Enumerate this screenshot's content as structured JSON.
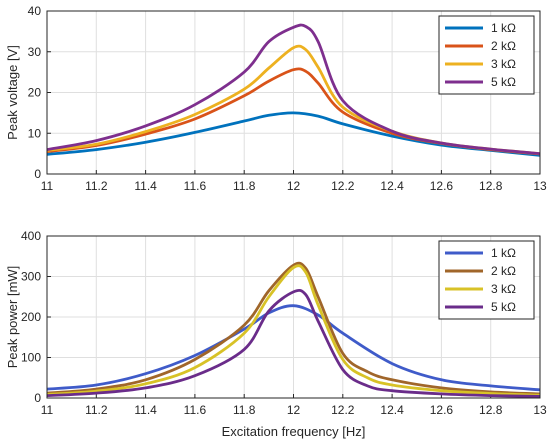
{
  "chart_data": [
    {
      "type": "line",
      "xlabel": "",
      "ylabel": "Peak voltage [V]",
      "xlim": [
        11,
        13
      ],
      "ylim": [
        0,
        40
      ],
      "xticks": [
        "11",
        "11.2",
        "11.4",
        "11.6",
        "11.8",
        "12",
        "12.2",
        "12.4",
        "12.6",
        "12.8",
        "13"
      ],
      "yticks": [
        "0",
        "10",
        "20",
        "30",
        "40"
      ],
      "grid": true,
      "legend_position": "top-right",
      "series": [
        {
          "name": "1 kΩ",
          "color": "#0072BD",
          "x": [
            11,
            11.2,
            11.4,
            11.6,
            11.8,
            11.9,
            12,
            12.1,
            12.2,
            12.4,
            12.6,
            12.8,
            13
          ],
          "y": [
            4.8,
            6,
            7.8,
            10.2,
            13,
            14.4,
            15,
            14.2,
            12.3,
            9.3,
            7.1,
            5.8,
            4.6
          ]
        },
        {
          "name": "2 kΩ",
          "color": "#D95319",
          "x": [
            11,
            11.2,
            11.4,
            11.6,
            11.8,
            11.9,
            12,
            12.05,
            12.1,
            12.2,
            12.4,
            12.6,
            12.8,
            13
          ],
          "y": [
            5.5,
            7,
            9.8,
            13.5,
            19.2,
            22.8,
            25.6,
            25.2,
            22.3,
            15.2,
            10,
            7.5,
            6,
            4.9
          ]
        },
        {
          "name": "3 kΩ",
          "color": "#EDB120",
          "x": [
            11,
            11.2,
            11.4,
            11.6,
            11.8,
            11.9,
            12,
            12.05,
            12.1,
            12.2,
            12.4,
            12.6,
            12.8,
            13
          ],
          "y": [
            5.8,
            7.3,
            10.4,
            14.6,
            20.8,
            26,
            31,
            30.5,
            26.2,
            16.4,
            10.5,
            7.6,
            6.1,
            5
          ],
          "note": ""
        },
        {
          "name": "5 kΩ",
          "color": "#7E2F8E",
          "x": [
            11,
            11.2,
            11.4,
            11.6,
            11.8,
            11.9,
            12,
            12.05,
            12.1,
            12.2,
            12.4,
            12.6,
            12.8,
            13
          ],
          "y": [
            6,
            8.2,
            11.8,
            17,
            25,
            32.5,
            36,
            36.2,
            32.5,
            18,
            10.5,
            7.6,
            6.1,
            5
          ]
        }
      ]
    },
    {
      "type": "line",
      "xlabel": "Excitation frequency [Hz]",
      "ylabel": "Peak power [mW]",
      "xlim": [
        11,
        13
      ],
      "ylim": [
        0,
        400
      ],
      "xticks": [
        "11",
        "11.2",
        "11.4",
        "11.6",
        "11.8",
        "12",
        "12.2",
        "12.4",
        "12.6",
        "12.8",
        "13"
      ],
      "yticks": [
        "0",
        "100",
        "200",
        "300",
        "400"
      ],
      "grid": true,
      "legend_position": "top-right",
      "series": [
        {
          "name": "1 kΩ",
          "color": "#3F5BC9",
          "x": [
            11,
            11.2,
            11.4,
            11.6,
            11.8,
            11.9,
            12,
            12.1,
            12.2,
            12.4,
            12.6,
            12.8,
            13
          ],
          "y": [
            22,
            32,
            60,
            105,
            170,
            210,
            228,
            205,
            160,
            85,
            45,
            30,
            20
          ]
        },
        {
          "name": "2 kΩ",
          "color": "#A0662A",
          "x": [
            11,
            11.2,
            11.4,
            11.6,
            11.8,
            11.9,
            12,
            12.05,
            12.1,
            12.2,
            12.3,
            12.4,
            12.6,
            12.8,
            13
          ],
          "y": [
            12,
            22,
            45,
            95,
            180,
            265,
            328,
            320,
            250,
            110,
            65,
            45,
            25,
            15,
            10
          ]
        },
        {
          "name": "3 kΩ",
          "color": "#D8C227",
          "x": [
            11,
            11.2,
            11.4,
            11.6,
            11.8,
            11.9,
            12,
            12.05,
            12.1,
            12.2,
            12.3,
            12.4,
            12.6,
            12.8,
            13
          ],
          "y": [
            9,
            17,
            35,
            75,
            160,
            250,
            322,
            310,
            230,
            95,
            50,
            32,
            18,
            11,
            7
          ]
        },
        {
          "name": "5 kΩ",
          "color": "#6A2C8A",
          "x": [
            11,
            11.2,
            11.4,
            11.6,
            11.8,
            11.9,
            12,
            12.05,
            12.1,
            12.2,
            12.3,
            12.4,
            12.6,
            12.8,
            13
          ],
          "y": [
            6,
            12,
            25,
            55,
            120,
            215,
            262,
            255,
            190,
            70,
            30,
            18,
            10,
            6,
            4
          ]
        }
      ]
    }
  ]
}
